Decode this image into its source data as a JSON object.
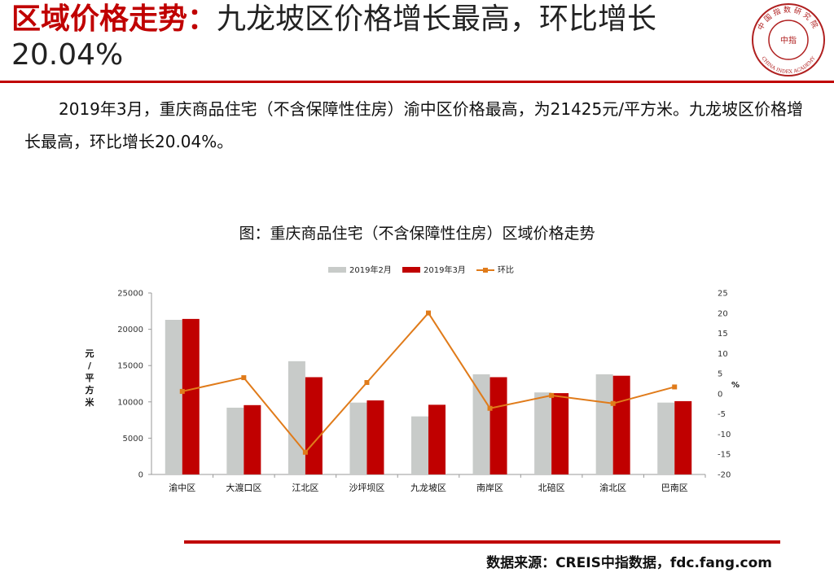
{
  "header": {
    "title_highlight": "区域价格走势：",
    "title_rest": "九龙坡区价格增长最高，环比增长20.04%"
  },
  "logo": {
    "top_text": "中国指数研究院",
    "center_text": "中指",
    "bottom_text": "CHINA INDEX ACADEMY",
    "color": "#b02020"
  },
  "intro_text": "2019年3月，重庆商品住宅（不含保障性住房）渝中区价格最高，为21425元/平方米。九龙坡区价格增长最高，环比增长20.04%。",
  "chart_title": "图：重庆商品住宅（不含保障性住房）区域价格走势",
  "source": "数据来源：CREIS中指数据，fdc.fang.com",
  "chart_data": {
    "type": "bar",
    "categories": [
      "渝中区",
      "大渡口区",
      "江北区",
      "沙坪坝区",
      "九龙坡区",
      "南岸区",
      "北碚区",
      "渝北区",
      "巴南区"
    ],
    "series": [
      {
        "name": "2019年2月",
        "type": "bar",
        "axis": "left",
        "color": "#c8cbc9",
        "values": [
          21300,
          9200,
          15600,
          9900,
          8000,
          13800,
          11300,
          13800,
          9900
        ]
      },
      {
        "name": "2019年3月",
        "type": "bar",
        "axis": "left",
        "color": "#c00000",
        "values": [
          21425,
          9550,
          13400,
          10200,
          9600,
          13400,
          11200,
          13600,
          10100
        ]
      },
      {
        "name": "环比",
        "type": "line",
        "axis": "right",
        "color": "#e07b1a",
        "values": [
          0.6,
          4.0,
          -14.5,
          2.8,
          20.04,
          -3.6,
          -0.4,
          -2.4,
          1.7
        ]
      }
    ],
    "ylabel": "元/平方米",
    "y2label": "%",
    "ylim": [
      0,
      25000
    ],
    "yticks": [
      0,
      5000,
      10000,
      15000,
      20000,
      25000
    ],
    "y2lim": [
      -20,
      25
    ],
    "y2ticks": [
      -20,
      -15,
      -10,
      -5,
      0,
      5,
      10,
      15,
      20,
      25
    ],
    "legend_position": "top",
    "grid": false
  }
}
